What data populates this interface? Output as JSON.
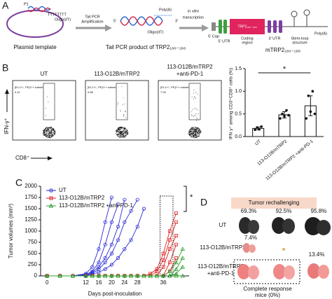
{
  "panel_a": {
    "label": "A",
    "plasmid": {
      "caption": "Plasmid template",
      "p1": "P1",
      "tail": "TTTTTTTT",
      "oligo": "Oligo(dT)"
    },
    "step1": [
      "Tail PCR",
      "Amplification"
    ],
    "product": {
      "caption": "Tail PCR product of TRP2₁₈₀₋₁₈₈",
      "polya": "Poly(A)",
      "oligo": "Oligo(dT)",
      "end5": "5'",
      "end3": "3'"
    },
    "step2": [
      "in vitro",
      "transcription"
    ],
    "mrna": {
      "caption": "mTRP2₁₈₀₋₁₈₈",
      "cap": "5' Cap",
      "utr5": "5' UTR",
      "coding": [
        "Coding",
        "region"
      ],
      "utr3": "3' UTR",
      "stem": [
        "Stem-loop",
        "structure"
      ],
      "polya": "Poly(A)",
      "insert": "TRP2₁₈₀₋₁₈₈"
    }
  },
  "panel_b": {
    "label": "B",
    "y_label": "IFN-γ⁺",
    "x_label": "CD8⁺",
    "plots": [
      {
        "title": [
          "UT"
        ],
        "gate": "[EL1+/-, PE]+/+ subset",
        "value": 0.11
      },
      {
        "title": [
          "113-O12B/mTRP2"
        ],
        "gate": "[EL1+/-, PE]+/+ subset",
        "value": 0.68
      },
      {
        "title": [
          "113-O12B/mTRP2",
          "+anti-PD-1"
        ],
        "gate": "[EL1+/-, PE]+/+ subset",
        "value": 7.09
      }
    ]
  },
  "panel_c": {
    "label": "C"
  },
  "panel_d": {
    "label": "D",
    "header": "Tumor rechallenging",
    "rows": [
      {
        "label": [
          "UT"
        ],
        "percents": [
          "69.3%",
          "92.5%",
          "95.8%"
        ]
      },
      {
        "label": [
          "113-O12B/mTRP2"
        ],
        "percents": [
          "7.4%"
        ]
      },
      {
        "label": [
          "113-O12B/mTRP2",
          "+anti-PD-1"
        ],
        "percents": [
          "13.4%"
        ]
      }
    ],
    "note": [
      "Complete response",
      "mice (0%)"
    ]
  },
  "chart_data": [
    {
      "type": "bar",
      "y_label": "IFN γ⁺ among CD3⁺CD8⁺ cells (%)",
      "categories": [
        "UT",
        "113-O12B/mTRP2",
        "113-O12B/mTRP2 +anti-PD-1"
      ],
      "values": [
        0.18,
        0.48,
        0.68
      ],
      "errors": [
        0.03,
        0.07,
        0.22
      ],
      "points": [
        [
          0.15,
          0.2,
          0.16,
          0.22
        ],
        [
          0.4,
          0.5,
          0.45,
          0.58,
          0.47
        ],
        [
          0.4,
          0.9,
          0.55,
          1.0,
          0.5
        ]
      ],
      "color": "#ffffff",
      "ylim": [
        0,
        1.5
      ],
      "yticks": [
        {
          "value": 0,
          "label": "0.0"
        },
        {
          "value": 0.5,
          "label": "0.5"
        },
        {
          "value": 1,
          "label": "1.0"
        },
        {
          "value": 1.5,
          "label": "1.5"
        }
      ],
      "significance": "*"
    },
    {
      "type": "line",
      "x_label": "Days post-inoculation",
      "y_label": "Tumor volumes (mm³)",
      "x": [
        0,
        4,
        8,
        12,
        14,
        16,
        18,
        20,
        22,
        24,
        26,
        28,
        30,
        32,
        34,
        36,
        38,
        40,
        42
      ],
      "xlim": [
        -2,
        44
      ],
      "xticks": [
        0,
        12,
        16,
        20,
        24,
        28,
        36
      ],
      "ylim": [
        0,
        2000
      ],
      "yticks": [
        0,
        250,
        500,
        750,
        1000,
        1250,
        1500,
        1750,
        2000
      ],
      "annotation": "*",
      "series": [
        {
          "name": "UT",
          "color": "#2a2ad4",
          "marker": "circle",
          "values": [
            [
              0,
              0,
              0,
              50,
              200,
              600,
              1200,
              1750,
              null,
              null,
              null,
              null,
              null,
              null,
              null,
              null,
              null,
              null,
              null
            ],
            [
              0,
              0,
              0,
              30,
              100,
              300,
              700,
              1200,
              1600,
              null,
              null,
              null,
              null,
              null,
              null,
              null,
              null,
              null,
              null
            ],
            [
              0,
              0,
              0,
              20,
              80,
              200,
              400,
              700,
              1100,
              1700,
              null,
              null,
              null,
              null,
              null,
              null,
              null,
              null,
              null
            ],
            [
              0,
              0,
              0,
              10,
              50,
              150,
              300,
              500,
              800,
              1200,
              1450,
              1700,
              null,
              null,
              null,
              null,
              null,
              null,
              null
            ],
            [
              0,
              0,
              0,
              10,
              30,
              80,
              150,
              250,
              400,
              600,
              800,
              1100,
              1500,
              null,
              null,
              null,
              null,
              null,
              null
            ]
          ]
        },
        {
          "name": "113-O12B/mTRP2",
          "color": "#e02020",
          "marker": "square",
          "values": [
            [
              0,
              0,
              0,
              0,
              0,
              0,
              0,
              0,
              0,
              0,
              0,
              0,
              0,
              50,
              150,
              500,
              1000,
              1400,
              null
            ],
            [
              0,
              0,
              0,
              0,
              0,
              0,
              0,
              0,
              0,
              0,
              0,
              0,
              0,
              0,
              100,
              350,
              800,
              1200,
              null
            ],
            [
              0,
              0,
              0,
              0,
              0,
              0,
              0,
              0,
              0,
              0,
              0,
              0,
              0,
              0,
              0,
              200,
              600,
              900,
              null
            ],
            [
              0,
              0,
              0,
              0,
              0,
              0,
              0,
              0,
              0,
              0,
              0,
              0,
              0,
              0,
              0,
              0,
              300,
              700,
              null
            ],
            [
              0,
              0,
              0,
              0,
              0,
              0,
              0,
              0,
              0,
              0,
              0,
              0,
              0,
              0,
              0,
              0,
              100,
              400,
              null
            ]
          ]
        },
        {
          "name": "113-O12B/mTRP2 +anti-PD-1",
          "color": "#2ca02c",
          "marker": "triangle",
          "values": [
            [
              0,
              0,
              0,
              0,
              0,
              0,
              0,
              0,
              0,
              0,
              0,
              0,
              0,
              0,
              0,
              0,
              100,
              300,
              600
            ],
            [
              0,
              0,
              0,
              0,
              0,
              0,
              0,
              0,
              0,
              0,
              0,
              0,
              0,
              0,
              0,
              0,
              0,
              150,
              400
            ],
            [
              0,
              0,
              0,
              0,
              0,
              0,
              0,
              0,
              0,
              0,
              0,
              0,
              0,
              0,
              0,
              0,
              0,
              50,
              200
            ],
            [
              0,
              0,
              0,
              0,
              0,
              0,
              0,
              0,
              0,
              0,
              0,
              0,
              0,
              0,
              0,
              0,
              0,
              0,
              0
            ]
          ]
        }
      ]
    }
  ]
}
